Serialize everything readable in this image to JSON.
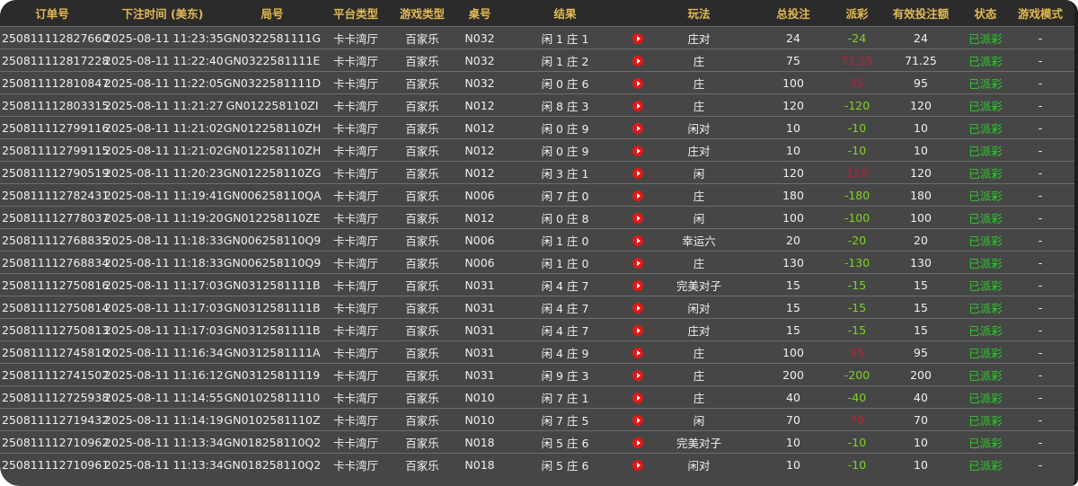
{
  "headers": [
    "订单号",
    "下注时间 (美东)",
    "局号",
    "平台类型",
    "游戏类型",
    "桌号",
    "结果",
    "",
    "玩法",
    "总投注",
    "派彩",
    "有效投注额",
    "状态",
    "游戏模式"
  ],
  "colors": {
    "header_text": "#e2b954",
    "payout_negative": "#7ed321",
    "payout_positive": "#b3253a",
    "status": "#2ecc2e",
    "play_icon": "#e01818"
  },
  "rows": [
    [
      "250811112827660",
      "2025-08-11 11:23:35",
      "GN0322581111G",
      "卡卡湾厅",
      "百家乐",
      "N032",
      "闲 1 庄 1",
      "庄对",
      "24",
      "-24",
      "24",
      "已派彩",
      "-"
    ],
    [
      "250811112817228",
      "2025-08-11 11:22:40",
      "GN0322581111E",
      "卡卡湾厅",
      "百家乐",
      "N032",
      "闲 1 庄 2",
      "庄",
      "75",
      "71.25",
      "71.25",
      "已派彩",
      "-"
    ],
    [
      "250811112810847",
      "2025-08-11 11:22:05",
      "GN0322581111D",
      "卡卡湾厅",
      "百家乐",
      "N032",
      "闲 0 庄 6",
      "庄",
      "100",
      "95",
      "95",
      "已派彩",
      "-"
    ],
    [
      "250811112803315",
      "2025-08-11 11:21:27",
      "GN012258110ZI",
      "卡卡湾厅",
      "百家乐",
      "N012",
      "闲 8 庄 3",
      "庄",
      "120",
      "-120",
      "120",
      "已派彩",
      "-"
    ],
    [
      "250811112799116",
      "2025-08-11 11:21:02",
      "GN012258110ZH",
      "卡卡湾厅",
      "百家乐",
      "N012",
      "闲 0 庄 9",
      "闲对",
      "10",
      "-10",
      "10",
      "已派彩",
      "-"
    ],
    [
      "250811112799115",
      "2025-08-11 11:21:02",
      "GN012258110ZH",
      "卡卡湾厅",
      "百家乐",
      "N012",
      "闲 0 庄 9",
      "庄对",
      "10",
      "-10",
      "10",
      "已派彩",
      "-"
    ],
    [
      "250811112790519",
      "2025-08-11 11:20:23",
      "GN012258110ZG",
      "卡卡湾厅",
      "百家乐",
      "N012",
      "闲 3 庄 1",
      "闲",
      "120",
      "120",
      "120",
      "已派彩",
      "-"
    ],
    [
      "250811112782431",
      "2025-08-11 11:19:41",
      "GN006258110QA",
      "卡卡湾厅",
      "百家乐",
      "N006",
      "闲 7 庄 0",
      "庄",
      "180",
      "-180",
      "180",
      "已派彩",
      "-"
    ],
    [
      "250811112778037",
      "2025-08-11 11:19:20",
      "GN012258110ZE",
      "卡卡湾厅",
      "百家乐",
      "N012",
      "闲 0 庄 8",
      "闲",
      "100",
      "-100",
      "100",
      "已派彩",
      "-"
    ],
    [
      "250811112768835",
      "2025-08-11 11:18:33",
      "GN006258110Q9",
      "卡卡湾厅",
      "百家乐",
      "N006",
      "闲 1 庄 0",
      "幸运六",
      "20",
      "-20",
      "20",
      "已派彩",
      "-"
    ],
    [
      "250811112768834",
      "2025-08-11 11:18:33",
      "GN006258110Q9",
      "卡卡湾厅",
      "百家乐",
      "N006",
      "闲 1 庄 0",
      "庄",
      "130",
      "-130",
      "130",
      "已派彩",
      "-"
    ],
    [
      "250811112750816",
      "2025-08-11 11:17:03",
      "GN0312581111B",
      "卡卡湾厅",
      "百家乐",
      "N031",
      "闲 4 庄 7",
      "完美对子",
      "15",
      "-15",
      "15",
      "已派彩",
      "-"
    ],
    [
      "250811112750814",
      "2025-08-11 11:17:03",
      "GN0312581111B",
      "卡卡湾厅",
      "百家乐",
      "N031",
      "闲 4 庄 7",
      "闲对",
      "15",
      "-15",
      "15",
      "已派彩",
      "-"
    ],
    [
      "250811112750813",
      "2025-08-11 11:17:03",
      "GN0312581111B",
      "卡卡湾厅",
      "百家乐",
      "N031",
      "闲 4 庄 7",
      "庄对",
      "15",
      "-15",
      "15",
      "已派彩",
      "-"
    ],
    [
      "250811112745810",
      "2025-08-11 11:16:34",
      "GN0312581111A",
      "卡卡湾厅",
      "百家乐",
      "N031",
      "闲 4 庄 9",
      "庄",
      "100",
      "95",
      "95",
      "已派彩",
      "-"
    ],
    [
      "250811112741502",
      "2025-08-11 11:16:12",
      "GN03125811119",
      "卡卡湾厅",
      "百家乐",
      "N031",
      "闲 9 庄 3",
      "庄",
      "200",
      "-200",
      "200",
      "已派彩",
      "-"
    ],
    [
      "250811112725938",
      "2025-08-11 11:14:55",
      "GN01025811110",
      "卡卡湾厅",
      "百家乐",
      "N010",
      "闲 7 庄 1",
      "庄",
      "40",
      "-40",
      "40",
      "已派彩",
      "-"
    ],
    [
      "250811112719432",
      "2025-08-11 11:14:19",
      "GN0102581110Z",
      "卡卡湾厅",
      "百家乐",
      "N010",
      "闲 7 庄 5",
      "闲",
      "70",
      "70",
      "70",
      "已派彩",
      "-"
    ],
    [
      "250811112710962",
      "2025-08-11 11:13:34",
      "GN018258110Q2",
      "卡卡湾厅",
      "百家乐",
      "N018",
      "闲 5 庄 6",
      "完美对子",
      "10",
      "-10",
      "10",
      "已派彩",
      "-"
    ],
    [
      "250811112710961",
      "2025-08-11 11:13:34",
      "GN018258110Q2",
      "卡卡湾厅",
      "百家乐",
      "N018",
      "闲 5 庄 6",
      "闲对",
      "10",
      "-10",
      "10",
      "已派彩",
      "-"
    ]
  ]
}
